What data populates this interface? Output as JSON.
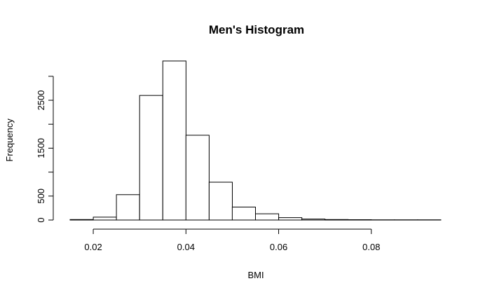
{
  "chart_data": {
    "type": "bar",
    "title": "Men's Histogram",
    "xlabel": "BMI",
    "ylabel": "Frequency",
    "bin_edges": [
      0.015,
      0.02,
      0.025,
      0.03,
      0.035,
      0.04,
      0.045,
      0.05,
      0.055,
      0.06,
      0.065,
      0.07,
      0.075,
      0.08,
      0.085,
      0.09,
      0.095
    ],
    "values": [
      10,
      60,
      530,
      2600,
      3320,
      1770,
      790,
      270,
      130,
      50,
      20,
      10,
      8,
      5,
      5,
      5
    ],
    "xlim": [
      0.015,
      0.095
    ],
    "ylim": [
      0,
      3320
    ],
    "x_ticks": [
      0.02,
      0.04,
      0.06,
      0.08
    ],
    "x_tick_labels": [
      "0.02",
      "0.04",
      "0.06",
      "0.08"
    ],
    "y_ticks": [
      0,
      500,
      1000,
      1500,
      2000,
      2500,
      3000
    ],
    "y_tick_labels": [
      "0",
      "500",
      "",
      "1500",
      "",
      "2500",
      ""
    ],
    "grid": false,
    "legend": "none"
  }
}
